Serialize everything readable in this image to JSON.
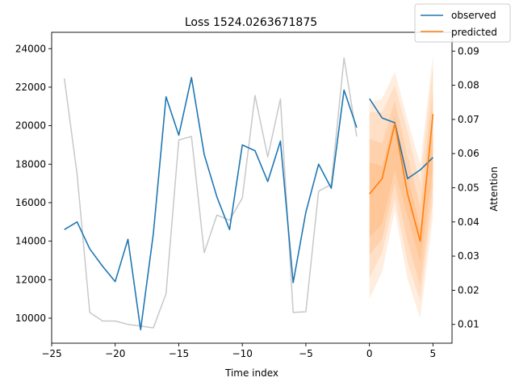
{
  "chart_data": {
    "type": "line",
    "title": "Loss 1524.0263671875",
    "xlabel": "Time index",
    "ylabel": "",
    "y2label": "Attention",
    "xlim": [
      -25,
      6.5
    ],
    "ylim": [
      8700,
      24850
    ],
    "y2lim": [
      0.0045,
      0.0955
    ],
    "xticks": [
      -25,
      -20,
      -15,
      -10,
      -5,
      0,
      5
    ],
    "yticks": [
      10000,
      12000,
      14000,
      16000,
      18000,
      20000,
      22000,
      24000
    ],
    "y2ticks": [
      0.01,
      0.02,
      0.03,
      0.04,
      0.05,
      0.06,
      0.07,
      0.08,
      0.09
    ],
    "legend": {
      "location": "top-right",
      "entries": [
        "observed",
        "predicted"
      ]
    },
    "colors": {
      "observed": "#1f77b4",
      "predicted": "#ff7f0e",
      "attention": "#c8c8c8",
      "band": "#ff7f0e"
    },
    "series": [
      {
        "name": "observed",
        "axis": "left",
        "segments": [
          {
            "x": [
              -24,
              -23,
              -22,
              -21,
              -20,
              -19,
              -18,
              -17,
              -16,
              -15,
              -14,
              -13,
              -12,
              -11,
              -10,
              -9,
              -8,
              -7,
              -6,
              -5,
              -4,
              -3,
              -2,
              -1
            ],
            "y": [
              14600,
              15000,
              13600,
              12700,
              11900,
              14100,
              9400,
              14400,
              21500,
              19500,
              22500,
              18500,
              16300,
              14600,
              19000,
              18700,
              17100,
              19200,
              11850,
              15500,
              18000,
              16750,
              21850,
              19900
            ]
          },
          {
            "x": [
              0,
              1,
              2,
              3,
              4,
              5
            ],
            "y": [
              21400,
              20400,
              20150,
              17250,
              17700,
              18350
            ]
          }
        ]
      },
      {
        "name": "predicted",
        "axis": "left",
        "x": [
          0,
          1,
          2,
          3,
          4,
          5
        ],
        "y": [
          16450,
          17250,
          20100,
          16450,
          14000,
          20600
        ]
      },
      {
        "name": "attention",
        "axis": "right",
        "x": [
          -24,
          -23,
          -22,
          -21,
          -20,
          -19,
          -18,
          -17,
          -16,
          -15,
          -14,
          -13,
          -12,
          -11,
          -10,
          -9,
          -8,
          -7,
          -6,
          -5,
          -4,
          -3,
          -2,
          -1
        ],
        "y": [
          0.082,
          0.054,
          0.0135,
          0.011,
          0.011,
          0.01,
          0.0095,
          0.009,
          0.019,
          0.064,
          0.065,
          0.031,
          0.042,
          0.0405,
          0.047,
          0.077,
          0.059,
          0.076,
          0.0135,
          0.0137,
          0.049,
          0.051,
          0.088,
          0.065
        ]
      }
    ],
    "prediction_bands": [
      {
        "x": [
          0,
          1,
          2,
          3,
          4,
          5
        ],
        "lower": [
          14200,
          14900,
          17700,
          15300,
          12900,
          17700
        ],
        "upper": [
          18100,
          17900,
          20500,
          17400,
          14700,
          20900
        ]
      },
      {
        "x": [
          0,
          1,
          2,
          3,
          4,
          5
        ],
        "lower": [
          13300,
          14100,
          17000,
          14000,
          11700,
          16900
        ],
        "upper": [
          19300,
          19100,
          21300,
          18400,
          15800,
          21800
        ]
      },
      {
        "x": [
          0,
          1,
          2,
          3,
          4,
          5
        ],
        "lower": [
          12100,
          13400,
          16200,
          12900,
          10900,
          16100
        ],
        "upper": [
          20700,
          20700,
          22100,
          19700,
          17000,
          23100
        ]
      },
      {
        "x": [
          0,
          1,
          2,
          3,
          4,
          5
        ],
        "lower": [
          11000,
          12400,
          15600,
          12000,
          10000,
          15300
        ],
        "upper": [
          21200,
          21400,
          22800,
          20300,
          18000,
          23700
        ]
      }
    ]
  }
}
